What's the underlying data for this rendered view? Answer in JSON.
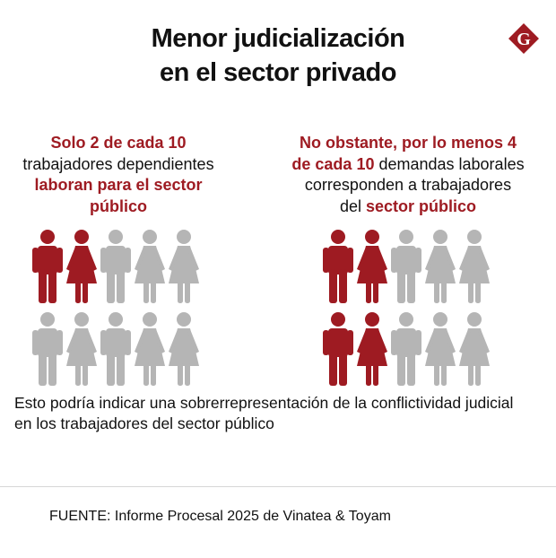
{
  "title": {
    "line1": "Menor judicialización",
    "line2": "en el sector privado"
  },
  "logo": {
    "letter": "G",
    "color": "#9e1b22"
  },
  "left": {
    "l1_red": "Solo 2 de cada 10",
    "l2": "trabajadores dependientes",
    "l3_red": "laboran para el sector",
    "l4_red": "público"
  },
  "right": {
    "l1_red": "No obstante, por lo menos 4",
    "l2_red": "de cada 10",
    "l2": " demandas laborales",
    "l3": "corresponden a trabajadores",
    "l4": "del ",
    "l4_red": "sector público"
  },
  "note": "Esto podría indicar una sobrerrepresentación de la conflictividad judicial en los trabajadores del sector público",
  "source": "FUENTE: Informe Procesal 2025 de Vinatea & Toyam",
  "colors": {
    "highlight": "#9e1b22",
    "neutral": "#b5b5b5"
  },
  "chart_data": [
    {
      "type": "pictogram",
      "total": 10,
      "highlighted": 2,
      "figures": [
        "man",
        "woman",
        "man",
        "woman",
        "woman",
        "man",
        "woman",
        "man",
        "woman",
        "woman"
      ],
      "highlighted_index": [
        0,
        1
      ]
    },
    {
      "type": "pictogram",
      "total": 10,
      "highlighted": 4,
      "figures": [
        "man",
        "woman",
        "man",
        "woman",
        "woman",
        "man",
        "woman",
        "man",
        "woman",
        "woman"
      ],
      "highlighted_index": [
        0,
        1,
        5,
        6
      ]
    }
  ]
}
